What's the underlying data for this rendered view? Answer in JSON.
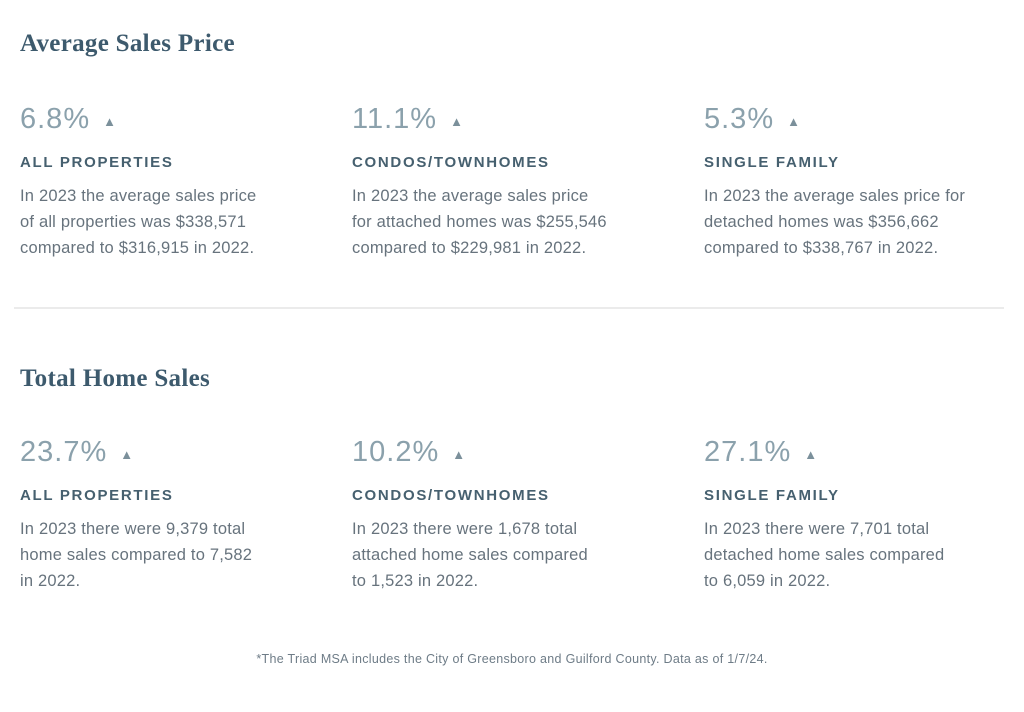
{
  "colors": {
    "title": "#3d5a6d",
    "percent": "#8ba1ac",
    "triangle": "#7b909b",
    "label": "#46606f",
    "body_text": "#67737d",
    "footnote": "#6e7c87",
    "divider": "#ebebeb",
    "background": "#ffffff"
  },
  "icons": {
    "up_triangle": "▲"
  },
  "sections": [
    {
      "title": "Average Sales Price",
      "stats": [
        {
          "percent": "6.8%",
          "direction": "up",
          "label": "ALL PROPERTIES",
          "lines": [
            "In 2023 the average sales price",
            "of all properties was $338,571",
            "compared to $316,915 in 2022."
          ]
        },
        {
          "percent": "11.1%",
          "direction": "up",
          "label": "CONDOS/TOWNHOMES",
          "lines": [
            "In 2023 the average sales price",
            "for attached homes was $255,546",
            "compared to $229,981 in 2022."
          ]
        },
        {
          "percent": "5.3%",
          "direction": "up",
          "label": "SINGLE FAMILY",
          "lines": [
            "In 2023 the average sales price for",
            "detached homes was $356,662",
            "compared to $338,767 in 2022."
          ]
        }
      ]
    },
    {
      "title": "Total Home Sales",
      "stats": [
        {
          "percent": "23.7%",
          "direction": "up",
          "label": "ALL PROPERTIES",
          "lines": [
            "In 2023 there were 9,379 total",
            "home sales compared to 7,582",
            "in 2022."
          ]
        },
        {
          "percent": "10.2%",
          "direction": "up",
          "label": "CONDOS/TOWNHOMES",
          "lines": [
            "In 2023 there were 1,678 total",
            "attached home sales compared",
            "to 1,523 in 2022."
          ]
        },
        {
          "percent": "27.1%",
          "direction": "up",
          "label": "SINGLE FAMILY",
          "lines": [
            "In 2023 there were 7,701 total",
            "detached home sales compared",
            "to 6,059 in 2022."
          ]
        }
      ]
    }
  ],
  "footnote": {
    "text": "*The Triad MSA includes the City of Greensboro and Guilford County. Data as of 1/7/24."
  }
}
